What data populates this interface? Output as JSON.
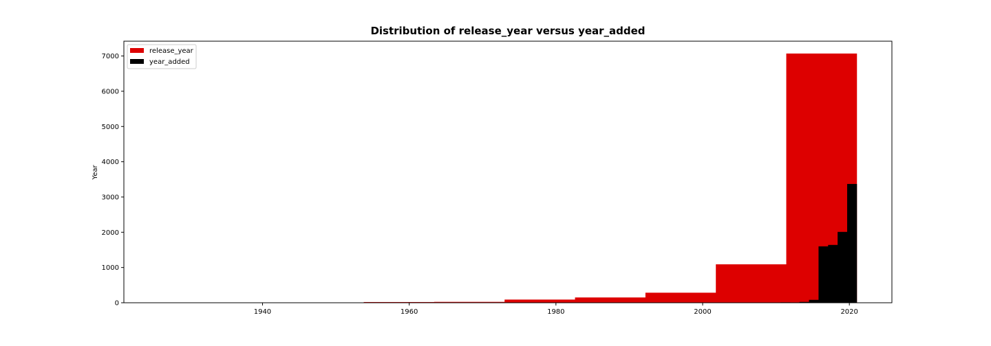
{
  "chart_data": {
    "type": "bar",
    "title": "Distribution of release_year versus year_added",
    "xlabel": "",
    "ylabel": "Year",
    "xlim": [
      1921.1,
      1925.0
    ],
    "ylim": [
      0,
      7420
    ],
    "x_ticks": [
      1940,
      1960,
      1980,
      2000,
      2020
    ],
    "y_ticks": [
      0,
      1000,
      2000,
      3000,
      4000,
      5000,
      6000,
      7000
    ],
    "grid": false,
    "legend_position": "top-left",
    "series": [
      {
        "name": "release_year",
        "color": "#dd0000",
        "bins": [
          {
            "x0": 1925.0,
            "x1": 1934.6,
            "value": 0
          },
          {
            "x0": 1934.6,
            "x1": 1944.2,
            "value": 3
          },
          {
            "x0": 1944.2,
            "x1": 1953.8,
            "value": 5
          },
          {
            "x0": 1953.8,
            "x1": 1963.4,
            "value": 20
          },
          {
            "x0": 1963.4,
            "x1": 1973.0,
            "value": 25
          },
          {
            "x0": 1973.0,
            "x1": 1982.6,
            "value": 90
          },
          {
            "x0": 1982.6,
            "x1": 1992.2,
            "value": 150
          },
          {
            "x0": 1992.2,
            "x1": 2001.8,
            "value": 285
          },
          {
            "x0": 2001.8,
            "x1": 2011.4,
            "value": 1090
          },
          {
            "x0": 2011.4,
            "x1": 2021.0,
            "value": 7070
          }
        ]
      },
      {
        "name": "year_added",
        "color": "#000000",
        "bins": [
          {
            "x0": 2008.0,
            "x1": 2009.3,
            "value": 2
          },
          {
            "x0": 2009.3,
            "x1": 2010.6,
            "value": 1
          },
          {
            "x0": 2010.6,
            "x1": 2011.9,
            "value": 13
          },
          {
            "x0": 2011.9,
            "x1": 2013.2,
            "value": 11
          },
          {
            "x0": 2013.2,
            "x1": 2014.5,
            "value": 24
          },
          {
            "x0": 2014.5,
            "x1": 2015.8,
            "value": 82
          },
          {
            "x0": 2015.8,
            "x1": 2017.1,
            "value": 1600
          },
          {
            "x0": 2017.1,
            "x1": 2018.4,
            "value": 1640
          },
          {
            "x0": 2018.4,
            "x1": 2019.7,
            "value": 2010
          },
          {
            "x0": 2019.7,
            "x1": 2021.0,
            "value": 3370
          }
        ]
      }
    ]
  }
}
